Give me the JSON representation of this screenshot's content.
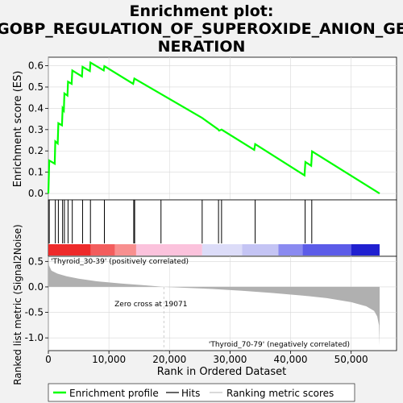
{
  "title_line1": "Enrichment plot:",
  "title_line2": "GOBP_REGULATION_OF_SUPEROXIDE_ANION_GE",
  "title_line3": "NERATION",
  "colors": {
    "es_line": "#00ff00",
    "hits": "#000000",
    "metric_fill": "#b0b0b0",
    "positive_label": "#cc0000",
    "negative_label": "#0000cc",
    "zero_cross_line": "#c0c0c0"
  },
  "chart_data": [
    {
      "type": "line",
      "name": "enrichment-score",
      "ylabel": "Enrichment score (ES)",
      "xlim": [
        0,
        57500
      ],
      "ylim": [
        -0.03,
        0.64
      ],
      "yticks": [
        0.0,
        0.1,
        0.2,
        0.3,
        0.4,
        0.5,
        0.6
      ],
      "ytick_labels": [
        "0.0",
        "0.1",
        "0.2",
        "0.3",
        "0.4",
        "0.5",
        "0.6"
      ],
      "grid": true,
      "points": [
        [
          0,
          0.0
        ],
        [
          150,
          0.155
        ],
        [
          1050,
          0.14
        ],
        [
          1150,
          0.245
        ],
        [
          1550,
          0.235
        ],
        [
          1650,
          0.33
        ],
        [
          2250,
          0.32
        ],
        [
          2350,
          0.4
        ],
        [
          2550,
          0.39
        ],
        [
          2650,
          0.47
        ],
        [
          3150,
          0.46
        ],
        [
          3250,
          0.525
        ],
        [
          3850,
          0.515
        ],
        [
          3950,
          0.578
        ],
        [
          5550,
          0.55
        ],
        [
          5650,
          0.595
        ],
        [
          6850,
          0.575
        ],
        [
          6950,
          0.615
        ],
        [
          9150,
          0.578
        ],
        [
          9250,
          0.598
        ],
        [
          14000,
          0.515
        ],
        [
          14200,
          0.54
        ],
        [
          25400,
          0.355
        ],
        [
          28000,
          0.302
        ],
        [
          28200,
          0.295
        ],
        [
          28600,
          0.3
        ],
        [
          34000,
          0.205
        ],
        [
          34150,
          0.232
        ],
        [
          42300,
          0.085
        ],
        [
          42450,
          0.148
        ],
        [
          43400,
          0.13
        ],
        [
          43550,
          0.198
        ],
        [
          54700,
          0.0
        ]
      ]
    },
    {
      "type": "bar",
      "name": "hits",
      "xlim": [
        0,
        57500
      ],
      "positions": [
        150,
        1150,
        1650,
        2350,
        2650,
        3250,
        3950,
        5650,
        6950,
        9250,
        14100,
        14250,
        18600,
        25400,
        28100,
        28600,
        34150,
        42400,
        43500
      ]
    },
    {
      "type": "area",
      "name": "ranking-metric",
      "xlabel": "Rank in Ordered Dataset",
      "ylabel": "Ranked list metric (Signal2Noise)",
      "xlim": [
        0,
        57500
      ],
      "ylim": [
        -1.25,
        0.6
      ],
      "xticks": [
        0,
        10000,
        20000,
        30000,
        40000,
        50000
      ],
      "xtick_labels": [
        "0",
        "10,000",
        "20,000",
        "30,000",
        "40,000",
        "50,000"
      ],
      "yticks": [
        -1.0,
        -0.5,
        0.0,
        0.5
      ],
      "ytick_labels": [
        "-1.0",
        "-0.5",
        "0.0",
        "0.5"
      ],
      "grid": true,
      "points": [
        [
          0,
          0.62
        ],
        [
          100,
          0.42
        ],
        [
          500,
          0.32
        ],
        [
          1500,
          0.26
        ],
        [
          3000,
          0.21
        ],
        [
          5000,
          0.16
        ],
        [
          8000,
          0.11
        ],
        [
          12000,
          0.065
        ],
        [
          16000,
          0.03
        ],
        [
          19071,
          0.0
        ],
        [
          22000,
          -0.015
        ],
        [
          27000,
          -0.04
        ],
        [
          32000,
          -0.075
        ],
        [
          37000,
          -0.12
        ],
        [
          42000,
          -0.17
        ],
        [
          46000,
          -0.22
        ],
        [
          50000,
          -0.3
        ],
        [
          52500,
          -0.38
        ],
        [
          53800,
          -0.47
        ],
        [
          54300,
          -0.58
        ],
        [
          54600,
          -0.75
        ],
        [
          54700,
          -1.15
        ]
      ],
      "zero_cross": 19071,
      "zero_cross_label": "Zero cross at 19071",
      "positive_label": "'Thyroid_30-39' (positively correlated)",
      "negative_label": "'Thyroid_70-79' (negatively correlated)"
    }
  ],
  "legend": {
    "items": [
      {
        "label": "Enrichment profile",
        "color": "#00ff00"
      },
      {
        "label": "Hits",
        "color": "#000000"
      },
      {
        "label": "Ranking metric scores",
        "color": "#c0c0c0"
      }
    ]
  }
}
